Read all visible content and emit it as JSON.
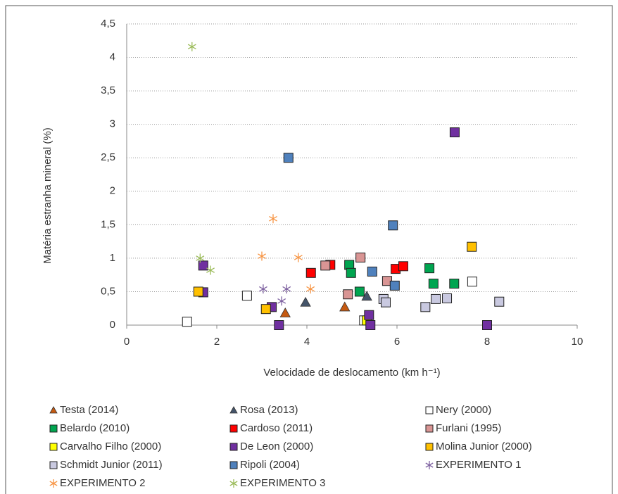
{
  "chart_data": {
    "type": "scatter",
    "x_label": "Velocidade de deslocamento (km h⁻¹)",
    "y_label": "Matéria estranha mineral (%)",
    "xlim": [
      0,
      10
    ],
    "xticks": [
      0,
      2,
      4,
      6,
      8,
      10
    ],
    "ylim": [
      0,
      4.5
    ],
    "yticks": [
      0,
      {
        "value": 0.5,
        "label": "0,5"
      },
      1,
      {
        "value": 1.5,
        "label": "1,5"
      },
      2,
      {
        "value": 2.5,
        "label": "2,5"
      },
      3,
      {
        "value": 3.5,
        "label": "3,5"
      },
      4,
      {
        "value": 4.5,
        "label": "4,5"
      }
    ],
    "grid": true,
    "series": [
      {
        "name": "Testa (2014)",
        "color": "#c55a11",
        "marker": "triangle",
        "x": [
          3.52,
          4.84
        ],
        "values": [
          0.18,
          0.27
        ]
      },
      {
        "name": "Rosa (2013)",
        "color": "#44546a",
        "marker": "triangle",
        "x": [
          3.97,
          5.33
        ],
        "values": [
          0.34,
          0.43
        ]
      },
      {
        "name": "Nery (2000)",
        "color": "#ffffff",
        "marker": "square",
        "x": [
          1.34,
          2.67,
          5.27,
          7.67
        ],
        "values": [
          0.05,
          0.44,
          0.07,
          0.65
        ]
      },
      {
        "name": "Belardo (2010)",
        "color": "#00a550",
        "marker": "square",
        "x": [
          4.94,
          4.98,
          5.17,
          6.72,
          6.81,
          7.27
        ],
        "values": [
          0.9,
          0.78,
          0.5,
          0.85,
          0.62,
          0.62
        ]
      },
      {
        "name": "Cardoso (2011)",
        "color": "#ff0000",
        "marker": "square",
        "x": [
          4.09,
          4.52,
          5.97,
          6.14
        ],
        "values": [
          0.78,
          0.9,
          0.84,
          0.88
        ]
      },
      {
        "name": "Furlani (1995)",
        "color": "#d99594",
        "marker": "square",
        "x": [
          4.41,
          4.91,
          5.19,
          5.78
        ],
        "values": [
          0.89,
          0.46,
          1.01,
          0.66
        ]
      },
      {
        "name": "Carvalho Filho (2000)",
        "color": "#ffff00",
        "marker": "square",
        "x": [
          5.33
        ],
        "values": [
          0.07
        ]
      },
      {
        "name": "De Leon (2000)",
        "color": "#7030a0",
        "marker": "square",
        "x": [
          1.7,
          1.7,
          3.22,
          3.38,
          5.38,
          5.41,
          7.28,
          8.0
        ],
        "values": [
          0.89,
          0.49,
          0.27,
          0,
          0.15,
          0,
          2.88,
          0
        ]
      },
      {
        "name": "Molina Junior (2000)",
        "color": "#ffc000",
        "marker": "square",
        "x": [
          1.59,
          3.09,
          7.66
        ],
        "values": [
          0.5,
          0.24,
          1.17
        ]
      },
      {
        "name": "Schmidt Junior (2011)",
        "color": "#c9c9e0",
        "marker": "square",
        "x": [
          5.7,
          5.75,
          6.63,
          6.86,
          7.11,
          8.27
        ],
        "values": [
          0.39,
          0.34,
          0.27,
          0.39,
          0.4,
          0.35
        ]
      },
      {
        "name": "Ripoli (2004)",
        "color": "#4f81bd",
        "marker": "square",
        "x": [
          3.59,
          5.91,
          5.45,
          5.95
        ],
        "values": [
          2.5,
          1.49,
          0.8,
          0.59
        ]
      },
      {
        "name": "EXPERIMENTO 1",
        "color": "#8064a2",
        "marker": "star",
        "x": [
          3.03,
          3.44,
          3.55
        ],
        "values": [
          0.54,
          0.36,
          0.54
        ]
      },
      {
        "name": "EXPERIMENTO 2",
        "color": "#f79646",
        "marker": "star",
        "x": [
          3.25,
          3.0,
          3.81,
          4.08
        ],
        "values": [
          1.59,
          1.03,
          1.01,
          0.54
        ]
      },
      {
        "name": "EXPERIMENTO 3",
        "color": "#9bbb59",
        "marker": "star",
        "x": [
          1.45,
          1.63,
          1.86
        ],
        "values": [
          4.16,
          1.0,
          0.82
        ]
      }
    ]
  }
}
